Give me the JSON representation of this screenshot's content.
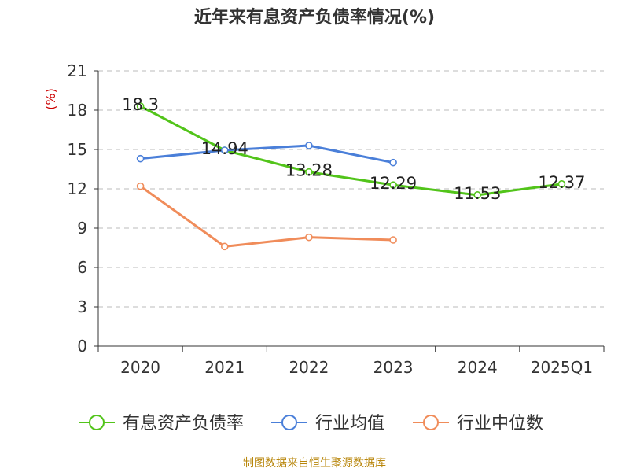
{
  "title": "近年来有息资产负债率情况(%)",
  "source": "制图数据来自恒生聚源数据库",
  "chart_data": {
    "type": "line",
    "title": "近年来有息资产负债率情况(%)",
    "ylabel": "(%)",
    "xlabel": "",
    "categories": [
      "2020",
      "2021",
      "2022",
      "2023",
      "2024",
      "2025Q1"
    ],
    "ylim": [
      0,
      21
    ],
    "yticks": [
      0,
      3,
      6,
      9,
      12,
      15,
      18,
      21
    ],
    "grid": "horizontal-dashed",
    "legend_position": "bottom",
    "series": [
      {
        "name": "有息资产负债率",
        "color": "#52c41a",
        "values": [
          18.3,
          14.94,
          13.28,
          12.29,
          11.53,
          12.37
        ],
        "show_labels": true
      },
      {
        "name": "行业均值",
        "color": "#4a7fd9",
        "values": [
          14.3,
          14.94,
          15.3,
          14.0,
          null,
          null
        ],
        "show_labels": false
      },
      {
        "name": "行业中位数",
        "color": "#f08c5a",
        "values": [
          12.2,
          7.6,
          8.3,
          8.1,
          null,
          null
        ],
        "show_labels": false
      }
    ]
  }
}
